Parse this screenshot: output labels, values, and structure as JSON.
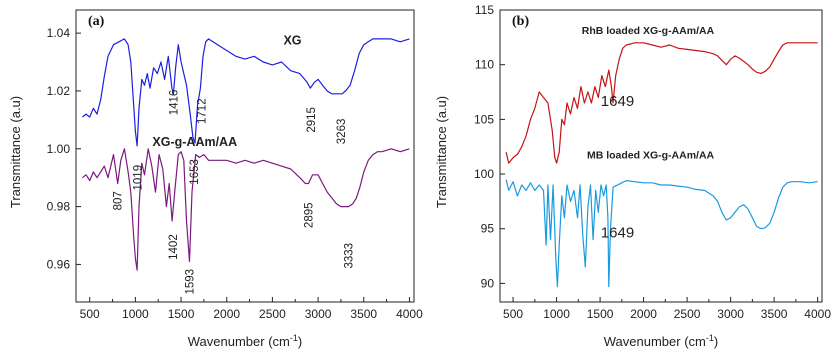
{
  "chart_data": [
    {
      "type": "line",
      "panel_label": "(a)",
      "xlabel": "Wavenumber (cm",
      "xlabel_sup": "-1",
      "xlabel_close": ")",
      "ylabel": "Transmittance (a.u)",
      "xlim": [
        350,
        4050
      ],
      "ylim": [
        0.947,
        1.048
      ],
      "x_ticks": [
        500,
        1000,
        1500,
        2000,
        2500,
        3000,
        3500,
        4000
      ],
      "x_tick_labels": [
        "500",
        "1000",
        "1500",
        "2000",
        "2500",
        "3000",
        "3500",
        "4000"
      ],
      "y_ticks": [
        0.96,
        0.98,
        1.0,
        1.02,
        1.04
      ],
      "y_tick_labels": [
        "0.96",
        "0.98",
        "1.00",
        "1.02",
        "1.04"
      ],
      "series": [
        {
          "name": "XG",
          "color": "#1f1fe0",
          "x": [
            420,
            460,
            500,
            540,
            580,
            620,
            660,
            700,
            760,
            820,
            880,
            920,
            950,
            975,
            1000,
            1019,
            1040,
            1070,
            1100,
            1130,
            1160,
            1200,
            1240,
            1280,
            1320,
            1360,
            1400,
            1416,
            1440,
            1470,
            1500,
            1530,
            1560,
            1600,
            1630,
            1653,
            1680,
            1712,
            1740,
            1770,
            1800,
            1900,
            2000,
            2100,
            2200,
            2300,
            2400,
            2500,
            2600,
            2700,
            2800,
            2880,
            2915,
            2960,
            3000,
            3050,
            3100,
            3150,
            3200,
            3263,
            3300,
            3350,
            3400,
            3450,
            3500,
            3550,
            3600,
            3650,
            3700,
            3800,
            3900,
            4000
          ],
          "y": [
            1.011,
            1.012,
            1.011,
            1.014,
            1.012,
            1.017,
            1.025,
            1.032,
            1.036,
            1.037,
            1.038,
            1.036,
            1.03,
            1.018,
            1.006,
            1.001,
            1.014,
            1.024,
            1.022,
            1.026,
            1.021,
            1.028,
            1.026,
            1.03,
            1.024,
            1.032,
            1.021,
            1.019,
            1.028,
            1.036,
            1.03,
            1.026,
            1.022,
            1.012,
            1.004,
            1.002,
            1.015,
            1.021,
            1.032,
            1.037,
            1.038,
            1.036,
            1.034,
            1.032,
            1.031,
            1.032,
            1.03,
            1.029,
            1.03,
            1.027,
            1.026,
            1.023,
            1.021,
            1.023,
            1.024,
            1.022,
            1.02,
            1.019,
            1.019,
            1.019,
            1.02,
            1.022,
            1.027,
            1.033,
            1.036,
            1.037,
            1.038,
            1.038,
            1.038,
            1.038,
            1.037,
            1.038
          ]
        },
        {
          "name": "XG-g-AAm/AA",
          "color": "#7a1a80",
          "x": [
            420,
            460,
            500,
            540,
            580,
            620,
            660,
            700,
            760,
            807,
            840,
            880,
            920,
            950,
            980,
            1000,
            1019,
            1040,
            1070,
            1100,
            1140,
            1180,
            1220,
            1260,
            1300,
            1340,
            1370,
            1402,
            1430,
            1470,
            1500,
            1530,
            1560,
            1593,
            1620,
            1660,
            1700,
            1750,
            1800,
            1900,
            2000,
            2100,
            2200,
            2300,
            2400,
            2500,
            2600,
            2700,
            2800,
            2860,
            2895,
            2940,
            3000,
            3050,
            3100,
            3150,
            3200,
            3250,
            3300,
            3333,
            3380,
            3420,
            3460,
            3500,
            3550,
            3600,
            3650,
            3700,
            3800,
            3900,
            4000
          ],
          "y": [
            0.99,
            0.991,
            0.989,
            0.992,
            0.99,
            0.992,
            0.994,
            0.99,
            0.998,
            0.988,
            0.996,
            1.0,
            0.992,
            0.985,
            0.97,
            0.962,
            0.958,
            0.98,
            0.995,
            0.991,
            1.0,
            0.994,
            0.985,
            0.998,
            0.993,
            0.98,
            0.988,
            0.975,
            0.985,
            0.998,
            0.999,
            0.996,
            0.975,
            0.961,
            0.985,
            0.998,
            0.997,
            0.998,
            0.996,
            0.996,
            0.996,
            0.995,
            0.996,
            0.995,
            0.996,
            0.995,
            0.994,
            0.993,
            0.99,
            0.988,
            0.988,
            0.991,
            0.991,
            0.988,
            0.985,
            0.983,
            0.981,
            0.98,
            0.98,
            0.98,
            0.981,
            0.983,
            0.987,
            0.992,
            0.996,
            0.998,
            0.999,
            0.999,
            1.0,
            0.999,
            1.0
          ]
        }
      ],
      "annotations": [
        {
          "text": "XG",
          "x": 2720,
          "y": 1.036,
          "bold": true
        },
        {
          "text": "XG-g-AAm/AA",
          "x": 1650,
          "y": 1.001,
          "bold": true
        },
        {
          "text": "1019",
          "x": 1025,
          "y": 0.99,
          "rotate": true
        },
        {
          "text": "1416",
          "x": 1420,
          "y": 1.016,
          "rotate": true
        },
        {
          "text": "1653",
          "x": 1640,
          "y": 0.992,
          "rotate": true
        },
        {
          "text": "1712",
          "x": 1725,
          "y": 1.013,
          "rotate": true
        },
        {
          "text": "2915",
          "x": 2920,
          "y": 1.01,
          "rotate": true
        },
        {
          "text": "3263",
          "x": 3250,
          "y": 1.006,
          "rotate": true
        },
        {
          "text": "807",
          "x": 805,
          "y": 0.982,
          "rotate": true
        },
        {
          "text": "1402",
          "x": 1410,
          "y": 0.966,
          "rotate": true
        },
        {
          "text": "1593",
          "x": 1595,
          "y": 0.954,
          "rotate": true
        },
        {
          "text": "2895",
          "x": 2895,
          "y": 0.977,
          "rotate": true
        },
        {
          "text": "3333",
          "x": 3333,
          "y": 0.963,
          "rotate": true
        }
      ]
    },
    {
      "type": "line",
      "panel_label": "(b)",
      "xlabel": "Wavenumber (cm",
      "xlabel_sup": "-1",
      "xlabel_close": ")",
      "ylabel": "Transmittance (a.u)",
      "xlim": [
        350,
        4050
      ],
      "ylim": [
        88.3,
        115
      ],
      "x_ticks": [
        500,
        1000,
        1500,
        2000,
        2500,
        3000,
        3500,
        4000
      ],
      "x_tick_labels": [
        "500",
        "1000",
        "1500",
        "2000",
        "2500",
        "3000",
        "3500",
        "4000"
      ],
      "y_ticks": [
        90,
        95,
        100,
        105,
        110,
        115
      ],
      "y_tick_labels": [
        "90",
        "95",
        "100",
        "105",
        "110",
        "115"
      ],
      "series": [
        {
          "name": "RhB loaded XG-g-AAm/AA",
          "color": "#c41414",
          "x": [
            420,
            450,
            500,
            550,
            600,
            650,
            700,
            750,
            800,
            850,
            900,
            950,
            980,
            1000,
            1030,
            1060,
            1090,
            1120,
            1160,
            1200,
            1240,
            1280,
            1320,
            1360,
            1400,
            1440,
            1480,
            1520,
            1560,
            1600,
            1630,
            1649,
            1680,
            1720,
            1760,
            1800,
            1900,
            2000,
            2100,
            2200,
            2300,
            2400,
            2500,
            2600,
            2700,
            2800,
            2850,
            2900,
            2950,
            3000,
            3050,
            3100,
            3150,
            3200,
            3250,
            3300,
            3350,
            3400,
            3450,
            3500,
            3550,
            3600,
            3650,
            3700,
            3800,
            3900,
            4000
          ],
          "y": [
            102,
            101,
            101.5,
            101.8,
            102.5,
            103.5,
            105,
            106,
            107.5,
            107,
            106.5,
            104,
            101.5,
            101,
            102,
            105,
            104.5,
            106.5,
            105.5,
            107,
            106,
            108,
            106.5,
            107.5,
            106.5,
            108,
            107,
            109,
            108,
            109.5,
            108,
            106.5,
            109,
            110.5,
            111.5,
            111.8,
            112,
            112,
            111.8,
            111.6,
            111.8,
            111.5,
            111.4,
            111.3,
            111.2,
            111,
            110.8,
            110.4,
            110.0,
            110.5,
            110.8,
            110.6,
            110.3,
            110.0,
            109.6,
            109.3,
            109.2,
            109.4,
            109.8,
            110.5,
            111.2,
            111.8,
            112.0,
            112.0,
            112.0,
            112.0,
            112.0
          ]
        },
        {
          "name": "MB loaded XG-g-AAm/AA",
          "color": "#1a9ae0",
          "x": [
            420,
            450,
            500,
            550,
            600,
            650,
            700,
            750,
            800,
            850,
            880,
            900,
            930,
            960,
            990,
            1010,
            1030,
            1060,
            1090,
            1120,
            1160,
            1200,
            1240,
            1270,
            1300,
            1330,
            1360,
            1390,
            1420,
            1450,
            1480,
            1510,
            1540,
            1570,
            1590,
            1600,
            1620,
            1650,
            1700,
            1750,
            1800,
            1900,
            2000,
            2100,
            2200,
            2300,
            2400,
            2500,
            2600,
            2700,
            2800,
            2850,
            2900,
            2950,
            3000,
            3050,
            3100,
            3150,
            3200,
            3250,
            3300,
            3350,
            3400,
            3450,
            3500,
            3550,
            3600,
            3650,
            3700,
            3800,
            3900,
            4000
          ],
          "y": [
            99.5,
            98.5,
            99.3,
            98,
            99,
            98.5,
            99.2,
            98.5,
            99,
            98.5,
            93.5,
            99,
            94,
            99,
            92.5,
            89.7,
            93.5,
            98,
            96,
            99,
            97.5,
            98.5,
            96,
            99,
            94.5,
            91.5,
            97,
            99,
            94,
            98.5,
            96.5,
            99,
            98,
            99,
            96,
            89.7,
            95,
            98.8,
            99,
            99.2,
            99.4,
            99.3,
            99.2,
            99.2,
            99.0,
            99.0,
            98.9,
            98.8,
            98.6,
            98.5,
            98.0,
            97.5,
            96.5,
            95.8,
            96.0,
            96.5,
            97.0,
            97.2,
            96.8,
            96.0,
            95.2,
            95.0,
            95.1,
            95.5,
            96.5,
            97.8,
            98.8,
            99.2,
            99.3,
            99.3,
            99.2,
            99.3
          ]
        }
      ],
      "annotations": [
        {
          "text": "RhB loaded XG-g-AAm/AA",
          "x": 2050,
          "y": 112.8,
          "bold": true
        },
        {
          "text": "MB loaded XG-g-AAm/AA",
          "x": 2080,
          "y": 101.4,
          "bold": true
        },
        {
          "text": "1649",
          "x": 1700,
          "y": 106.2,
          "bold": false,
          "large": true
        },
        {
          "text": "1649",
          "x": 1700,
          "y": 94.2,
          "bold": false,
          "large": true
        }
      ]
    }
  ]
}
